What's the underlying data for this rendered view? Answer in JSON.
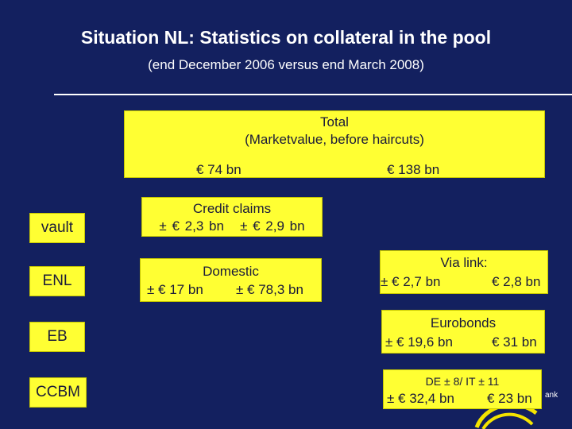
{
  "header": {
    "title": "Situation NL: Statistics on collateral in the pool",
    "subtitle": "(end December 2006 versus end March 2008)"
  },
  "total": {
    "label_line1": "Total",
    "label_line2": "(Marketvalue, before haircuts)",
    "value_2006": "€ 74 bn",
    "value_2008": "€ 138 bn"
  },
  "credit_claims": {
    "label": "Credit claims",
    "values": "± € 2,3 bn   ± € 2,9 bn"
  },
  "domestic": {
    "label": "Domestic",
    "value_2006": "± € 17 bn",
    "value_2008": "± € 78,3 bn"
  },
  "via_link": {
    "label": "Via link:",
    "value_2006": "± € 2,7 bn",
    "value_2008": "€ 2,8 bn"
  },
  "eurobonds": {
    "label": "Eurobonds",
    "value_2006": "± € 19,6 bn",
    "value_2008": "€ 31 bn"
  },
  "ccbm": {
    "label": "DE ± 8/ IT ± 11",
    "value_2006": "± € 32,4 bn",
    "value_2008": "€ 23 bn"
  },
  "categories": {
    "vault": "vault",
    "enl": "ENL",
    "eb": "EB",
    "ccbm": "CCBM"
  },
  "logo": {
    "text": "ank",
    "icon": "logo-swirl-icon"
  }
}
